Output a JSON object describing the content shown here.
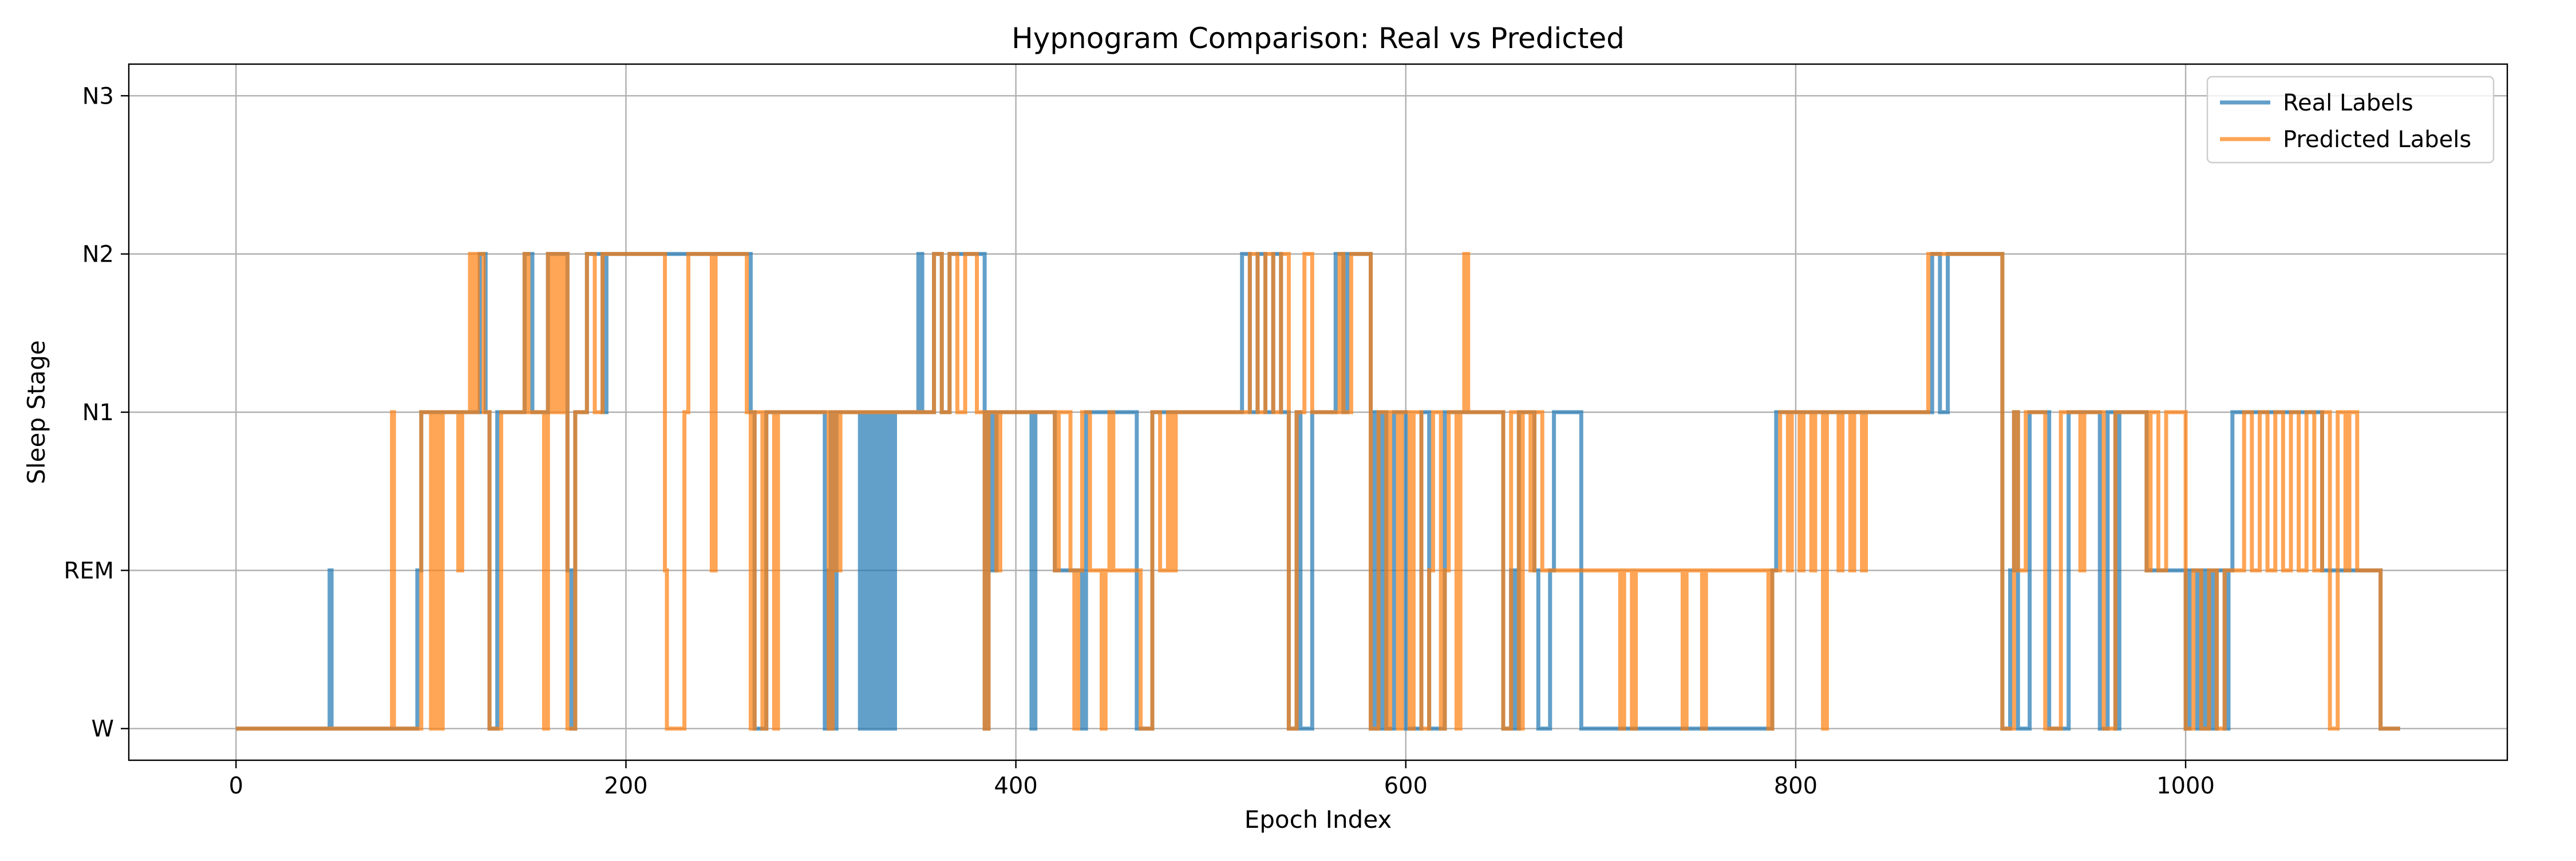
{
  "chart_data": {
    "type": "line",
    "title": "Hypnogram Comparison: Real vs Predicted",
    "xlabel": "Epoch Index",
    "ylabel": "Sleep Stage",
    "xlim": [
      -55,
      1165
    ],
    "ylim": [
      -0.2,
      4.2
    ],
    "x_ticks": [
      0,
      200,
      400,
      600,
      800,
      1000
    ],
    "y_categories": [
      "W",
      "REM",
      "N1",
      "N2",
      "N3"
    ],
    "grid": true,
    "legend_position": "top-right",
    "step": "post",
    "series": [
      {
        "name": "Real Labels",
        "color": "#1f77b4",
        "opacity": 0.7,
        "points": [
          [
            0,
            0
          ],
          [
            48,
            1
          ],
          [
            49,
            0
          ],
          [
            93,
            1
          ],
          [
            95,
            2
          ],
          [
            125,
            3
          ],
          [
            128,
            2
          ],
          [
            130,
            0
          ],
          [
            134,
            2
          ],
          [
            148,
            3
          ],
          [
            152,
            2
          ],
          [
            160,
            3
          ],
          [
            170,
            1
          ],
          [
            172,
            0
          ],
          [
            174,
            2
          ],
          [
            180,
            3
          ],
          [
            188,
            2
          ],
          [
            190,
            3
          ],
          [
            222,
            3
          ],
          [
            262,
            3
          ],
          [
            264,
            2
          ],
          [
            266,
            0
          ],
          [
            272,
            2
          ],
          [
            302,
            0
          ],
          [
            304,
            1
          ],
          [
            305,
            2
          ],
          [
            306,
            0
          ],
          [
            308,
            2
          ],
          [
            320,
            0
          ],
          [
            322,
            2
          ],
          [
            324,
            0
          ],
          [
            326,
            2
          ],
          [
            328,
            0
          ],
          [
            330,
            2
          ],
          [
            332,
            0
          ],
          [
            334,
            2
          ],
          [
            336,
            0
          ],
          [
            338,
            2
          ],
          [
            350,
            3
          ],
          [
            352,
            2
          ],
          [
            358,
            3
          ],
          [
            362,
            2
          ],
          [
            366,
            3
          ],
          [
            384,
            0
          ],
          [
            386,
            2
          ],
          [
            388,
            1
          ],
          [
            390,
            2
          ],
          [
            400,
            2
          ],
          [
            408,
            0
          ],
          [
            410,
            2
          ],
          [
            420,
            1
          ],
          [
            422,
            1
          ],
          [
            434,
            0
          ],
          [
            436,
            2
          ],
          [
            440,
            2
          ],
          [
            462,
            0
          ],
          [
            470,
            2
          ],
          [
            516,
            3
          ],
          [
            520,
            2
          ],
          [
            524,
            3
          ],
          [
            528,
            2
          ],
          [
            532,
            3
          ],
          [
            536,
            2
          ],
          [
            540,
            0
          ],
          [
            544,
            2
          ],
          [
            546,
            0
          ],
          [
            552,
            2
          ],
          [
            564,
            3
          ],
          [
            568,
            2
          ],
          [
            570,
            3
          ],
          [
            582,
            0
          ],
          [
            584,
            2
          ],
          [
            586,
            0
          ],
          [
            588,
            2
          ],
          [
            590,
            0
          ],
          [
            594,
            2
          ],
          [
            600,
            0
          ],
          [
            608,
            2
          ],
          [
            612,
            0
          ],
          [
            620,
            2
          ],
          [
            650,
            0
          ],
          [
            654,
            1
          ],
          [
            656,
            0
          ],
          [
            658,
            2
          ],
          [
            666,
            1
          ],
          [
            668,
            0
          ],
          [
            674,
            1
          ],
          [
            676,
            2
          ],
          [
            690,
            0
          ],
          [
            700,
            0
          ],
          [
            788,
            1
          ],
          [
            790,
            2
          ],
          [
            870,
            3
          ],
          [
            874,
            2
          ],
          [
            878,
            3
          ],
          [
            906,
            0
          ],
          [
            910,
            1
          ],
          [
            912,
            2
          ],
          [
            914,
            0
          ],
          [
            920,
            2
          ],
          [
            930,
            0
          ],
          [
            940,
            2
          ],
          [
            956,
            0
          ],
          [
            960,
            2
          ],
          [
            964,
            0
          ],
          [
            966,
            2
          ],
          [
            980,
            1
          ],
          [
            1000,
            0
          ],
          [
            1002,
            1
          ],
          [
            1006,
            0
          ],
          [
            1008,
            1
          ],
          [
            1010,
            0
          ],
          [
            1012,
            1
          ],
          [
            1014,
            0
          ],
          [
            1016,
            1
          ],
          [
            1020,
            0
          ],
          [
            1022,
            1
          ],
          [
            1024,
            2
          ],
          [
            1030,
            2
          ],
          [
            1070,
            1
          ],
          [
            1100,
            0
          ],
          [
            1110,
            0
          ]
        ]
      },
      {
        "name": "Predicted Labels",
        "color": "#ff7f0e",
        "opacity": 0.7,
        "points": [
          [
            0,
            0
          ],
          [
            80,
            2
          ],
          [
            81,
            0
          ],
          [
            95,
            2
          ],
          [
            100,
            0
          ],
          [
            102,
            2
          ],
          [
            104,
            0
          ],
          [
            106,
            2
          ],
          [
            114,
            1
          ],
          [
            116,
            2
          ],
          [
            120,
            3
          ],
          [
            122,
            2
          ],
          [
            124,
            3
          ],
          [
            127,
            2
          ],
          [
            130,
            0
          ],
          [
            136,
            2
          ],
          [
            148,
            3
          ],
          [
            150,
            2
          ],
          [
            158,
            0
          ],
          [
            160,
            3
          ],
          [
            162,
            2
          ],
          [
            164,
            3
          ],
          [
            166,
            2
          ],
          [
            168,
            3
          ],
          [
            170,
            0
          ],
          [
            174,
            2
          ],
          [
            180,
            3
          ],
          [
            184,
            2
          ],
          [
            188,
            3
          ],
          [
            220,
            1
          ],
          [
            221,
            0
          ],
          [
            230,
            2
          ],
          [
            232,
            3
          ],
          [
            244,
            1
          ],
          [
            246,
            3
          ],
          [
            262,
            2
          ],
          [
            264,
            0
          ],
          [
            266,
            2
          ],
          [
            270,
            0
          ],
          [
            272,
            2
          ],
          [
            276,
            0
          ],
          [
            278,
            2
          ],
          [
            304,
            0
          ],
          [
            306,
            2
          ],
          [
            308,
            1
          ],
          [
            310,
            2
          ],
          [
            340,
            2
          ],
          [
            358,
            3
          ],
          [
            362,
            2
          ],
          [
            366,
            3
          ],
          [
            370,
            2
          ],
          [
            374,
            3
          ],
          [
            380,
            2
          ],
          [
            384,
            0
          ],
          [
            386,
            2
          ],
          [
            390,
            1
          ],
          [
            392,
            2
          ],
          [
            420,
            1
          ],
          [
            422,
            2
          ],
          [
            428,
            1
          ],
          [
            430,
            0
          ],
          [
            432,
            1
          ],
          [
            434,
            2
          ],
          [
            438,
            1
          ],
          [
            440,
            1
          ],
          [
            444,
            0
          ],
          [
            446,
            1
          ],
          [
            448,
            2
          ],
          [
            450,
            1
          ],
          [
            460,
            1
          ],
          [
            464,
            0
          ],
          [
            470,
            2
          ],
          [
            474,
            1
          ],
          [
            478,
            2
          ],
          [
            480,
            1
          ],
          [
            482,
            2
          ],
          [
            520,
            3
          ],
          [
            524,
            2
          ],
          [
            528,
            3
          ],
          [
            532,
            2
          ],
          [
            536,
            3
          ],
          [
            540,
            0
          ],
          [
            544,
            2
          ],
          [
            548,
            3
          ],
          [
            552,
            2
          ],
          [
            566,
            3
          ],
          [
            568,
            2
          ],
          [
            572,
            3
          ],
          [
            582,
            0
          ],
          [
            586,
            2
          ],
          [
            590,
            0
          ],
          [
            592,
            2
          ],
          [
            596,
            0
          ],
          [
            598,
            2
          ],
          [
            602,
            0
          ],
          [
            604,
            2
          ],
          [
            608,
            0
          ],
          [
            612,
            1
          ],
          [
            614,
            2
          ],
          [
            618,
            0
          ],
          [
            620,
            1
          ],
          [
            622,
            2
          ],
          [
            626,
            0
          ],
          [
            628,
            2
          ],
          [
            630,
            3
          ],
          [
            632,
            2
          ],
          [
            650,
            0
          ],
          [
            654,
            2
          ],
          [
            658,
            0
          ],
          [
            660,
            2
          ],
          [
            664,
            1
          ],
          [
            666,
            2
          ],
          [
            670,
            1
          ],
          [
            672,
            1
          ],
          [
            710,
            0
          ],
          [
            712,
            1
          ],
          [
            716,
            0
          ],
          [
            718,
            1
          ],
          [
            742,
            0
          ],
          [
            744,
            1
          ],
          [
            752,
            0
          ],
          [
            754,
            1
          ],
          [
            786,
            0
          ],
          [
            788,
            1
          ],
          [
            792,
            2
          ],
          [
            796,
            1
          ],
          [
            798,
            2
          ],
          [
            802,
            1
          ],
          [
            804,
            2
          ],
          [
            808,
            1
          ],
          [
            810,
            2
          ],
          [
            814,
            0
          ],
          [
            816,
            2
          ],
          [
            822,
            1
          ],
          [
            824,
            2
          ],
          [
            828,
            1
          ],
          [
            830,
            2
          ],
          [
            834,
            1
          ],
          [
            836,
            2
          ],
          [
            868,
            3
          ],
          [
            906,
            0
          ],
          [
            912,
            2
          ],
          [
            914,
            1
          ],
          [
            918,
            2
          ],
          [
            928,
            0
          ],
          [
            936,
            2
          ],
          [
            946,
            1
          ],
          [
            948,
            2
          ],
          [
            958,
            0
          ],
          [
            964,
            2
          ],
          [
            980,
            1
          ],
          [
            982,
            2
          ],
          [
            986,
            1
          ],
          [
            990,
            2
          ],
          [
            1000,
            0
          ],
          [
            1004,
            1
          ],
          [
            1008,
            0
          ],
          [
            1012,
            1
          ],
          [
            1016,
            0
          ],
          [
            1020,
            1
          ],
          [
            1030,
            2
          ],
          [
            1034,
            1
          ],
          [
            1038,
            2
          ],
          [
            1042,
            1
          ],
          [
            1046,
            2
          ],
          [
            1050,
            1
          ],
          [
            1054,
            2
          ],
          [
            1058,
            1
          ],
          [
            1062,
            2
          ],
          [
            1066,
            1
          ],
          [
            1070,
            2
          ],
          [
            1074,
            0
          ],
          [
            1078,
            2
          ],
          [
            1082,
            1
          ],
          [
            1084,
            2
          ],
          [
            1088,
            1
          ],
          [
            1100,
            0
          ],
          [
            1110,
            0
          ]
        ]
      }
    ]
  }
}
